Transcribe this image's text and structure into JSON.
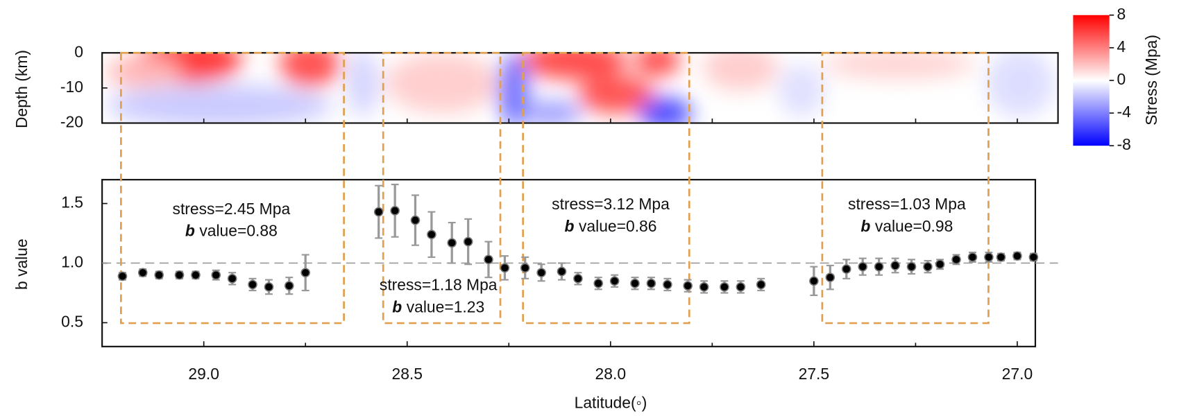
{
  "chart_data": [
    {
      "type": "heatmap",
      "ylabel": "Depth (km)",
      "ylim": [
        -20,
        0
      ],
      "yticks": [
        0,
        -10,
        -20
      ],
      "xlim": [
        29.25,
        26.9
      ],
      "xticks": [
        29,
        28.75,
        28.5,
        28.25,
        28,
        27.75,
        27.5,
        27.25,
        27
      ],
      "colorbar": {
        "label": "Stress (Mpa)",
        "lim": [
          -8,
          8
        ],
        "ticks": [
          8,
          4,
          0,
          -4,
          -8
        ],
        "colors": [
          "#0000ff",
          "#ffffff",
          "#ff0000"
        ]
      }
    },
    {
      "type": "scatter",
      "xlabel": "Latitude(◦)",
      "ylabel": "b value",
      "xlim": [
        29.25,
        26.95
      ],
      "ylim": [
        0.3,
        1.7
      ],
      "xticks": [
        {
          "value": 29,
          "label": "29.0"
        },
        28.5,
        {
          "value": 28,
          "label": "28.0"
        },
        27.5,
        {
          "value": 27,
          "label": "27.0"
        }
      ],
      "xminor": [
        28.75,
        28.25,
        27.75,
        27.25
      ],
      "yticks": [
        0.5,
        {
          "value": 1,
          "label": "1.0"
        },
        1.5
      ],
      "refline": 1.0,
      "color": "#000000",
      "error_color": "#999999",
      "x": [
        29.2,
        29.15,
        29.11,
        29.06,
        29.02,
        28.97,
        28.93,
        28.88,
        28.84,
        28.79,
        28.75,
        28.57,
        28.53,
        28.48,
        28.44,
        28.39,
        28.35,
        28.3,
        28.26,
        28.21,
        28.17,
        28.12,
        28.08,
        28.03,
        27.99,
        27.94,
        27.9,
        27.86,
        27.81,
        27.77,
        27.72,
        27.68,
        27.63,
        27.5,
        27.46,
        27.42,
        27.38,
        27.34,
        27.3,
        27.26,
        27.22,
        27.19,
        27.15,
        27.11,
        27.07,
        27.04,
        27.0,
        26.96
      ],
      "values": [
        0.89,
        0.92,
        0.9,
        0.9,
        0.9,
        0.9,
        0.87,
        0.82,
        0.8,
        0.81,
        0.92,
        1.43,
        1.44,
        1.36,
        1.24,
        1.17,
        1.18,
        1.03,
        0.96,
        0.96,
        0.92,
        0.93,
        0.87,
        0.83,
        0.85,
        0.83,
        0.83,
        0.82,
        0.81,
        0.8,
        0.8,
        0.8,
        0.82,
        0.85,
        0.88,
        0.95,
        0.97,
        0.97,
        0.98,
        0.97,
        0.97,
        0.99,
        1.03,
        1.05,
        1.05,
        1.05,
        1.06,
        1.05
      ],
      "errors": [
        0.03,
        0.03,
        0.03,
        0.03,
        0.03,
        0.04,
        0.05,
        0.05,
        0.06,
        0.07,
        0.15,
        0.22,
        0.22,
        0.21,
        0.19,
        0.17,
        0.19,
        0.15,
        0.1,
        0.09,
        0.07,
        0.07,
        0.05,
        0.05,
        0.05,
        0.05,
        0.05,
        0.05,
        0.05,
        0.05,
        0.05,
        0.05,
        0.05,
        0.12,
        0.1,
        0.08,
        0.07,
        0.07,
        0.06,
        0.06,
        0.05,
        0.04,
        0.04,
        0.04,
        0.04,
        0.03,
        0.03,
        0.03
      ],
      "annotations": [
        {
          "stress": "stress=2.45 Mpa",
          "b": "b",
          "text": "value=0.88"
        },
        {
          "stress": "stress=1.18 Mpa",
          "b": "b",
          "text": "value=1.23"
        },
        {
          "stress": "stress=3.12 Mpa",
          "b": "b",
          "text": "value=0.86"
        },
        {
          "stress": "stress=1.03 Mpa",
          "b": "b",
          "text": "value=0.98"
        }
      ]
    }
  ]
}
